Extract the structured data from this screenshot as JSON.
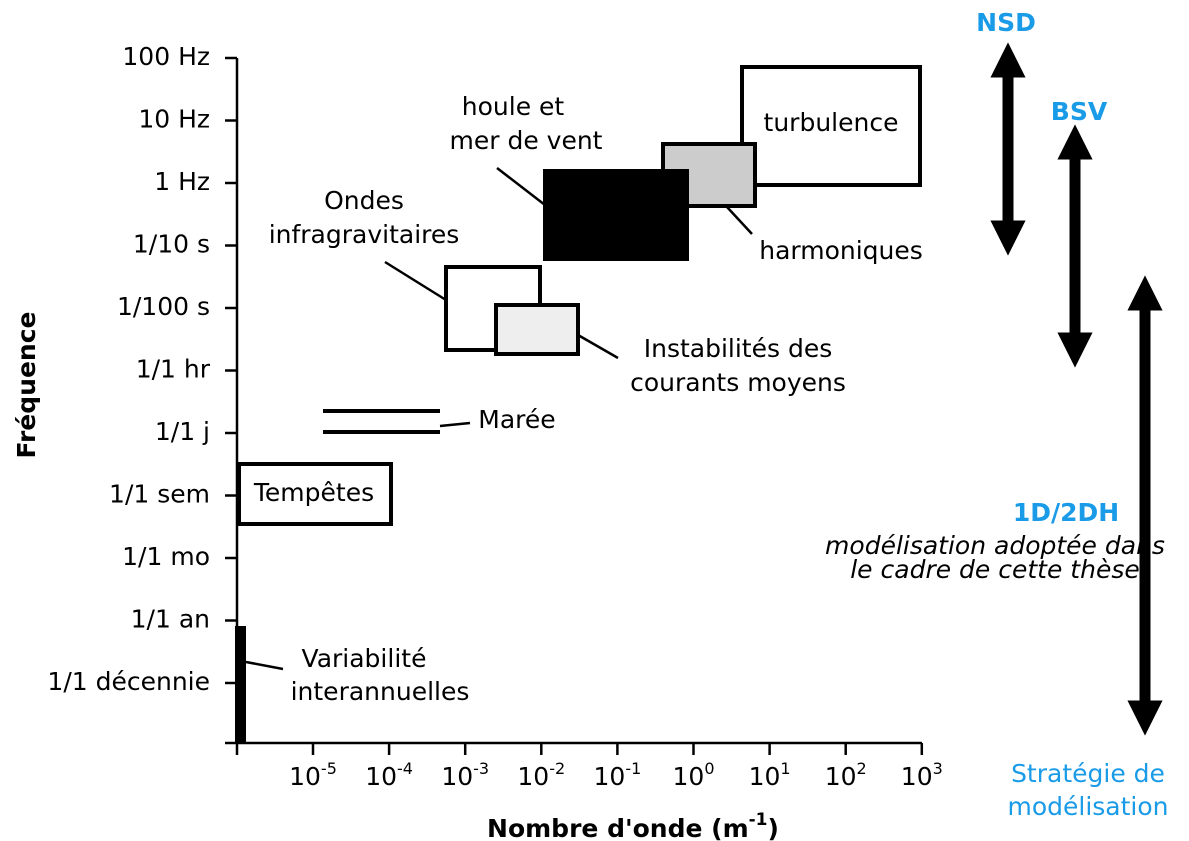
{
  "y_axis": {
    "title": "Fréquence",
    "ticks": [
      "100 Hz",
      "10 Hz",
      "1 Hz",
      "1/10 s",
      "1/100 s",
      "1/1 hr",
      "1/1 j",
      "1/1 sem",
      "1/1 mo",
      "1/1 an",
      "1/1 décennie"
    ]
  },
  "x_axis": {
    "title": {
      "text": "Nombre d'onde (m",
      "exponent": "-1",
      "close": ")"
    },
    "ticks": [
      {
        "base": "10",
        "exponent": "-5"
      },
      {
        "base": "10",
        "exponent": "-4"
      },
      {
        "base": "10",
        "exponent": "-3"
      },
      {
        "base": "10",
        "exponent": "-2"
      },
      {
        "base": "10",
        "exponent": "-1"
      },
      {
        "base": "10",
        "exponent": "0"
      },
      {
        "base": "10",
        "exponent": "1"
      },
      {
        "base": "10",
        "exponent": "2"
      },
      {
        "base": "10",
        "exponent": "3"
      }
    ]
  },
  "regions": {
    "turbulence": "turbulence",
    "harmoniques": "harmoniques",
    "houle": [
      "houle et",
      "mer de vent"
    ],
    "infragravitaires": [
      "Ondes",
      "infragravitaires"
    ],
    "instabilites": [
      "Instabilités des",
      "courants moyens"
    ],
    "maree": "Marée",
    "tempetes": "Tempêtes",
    "variabilite": [
      "Variabilité",
      "interannuelles"
    ]
  },
  "strategies": {
    "nsd": "NSD",
    "bsv": "BSV",
    "d12": "1D/2DH",
    "note": [
      "modélisation adoptée dans",
      "le cadre de cette thèse"
    ],
    "caption": [
      "Stratégie de",
      "modélisation"
    ]
  }
}
